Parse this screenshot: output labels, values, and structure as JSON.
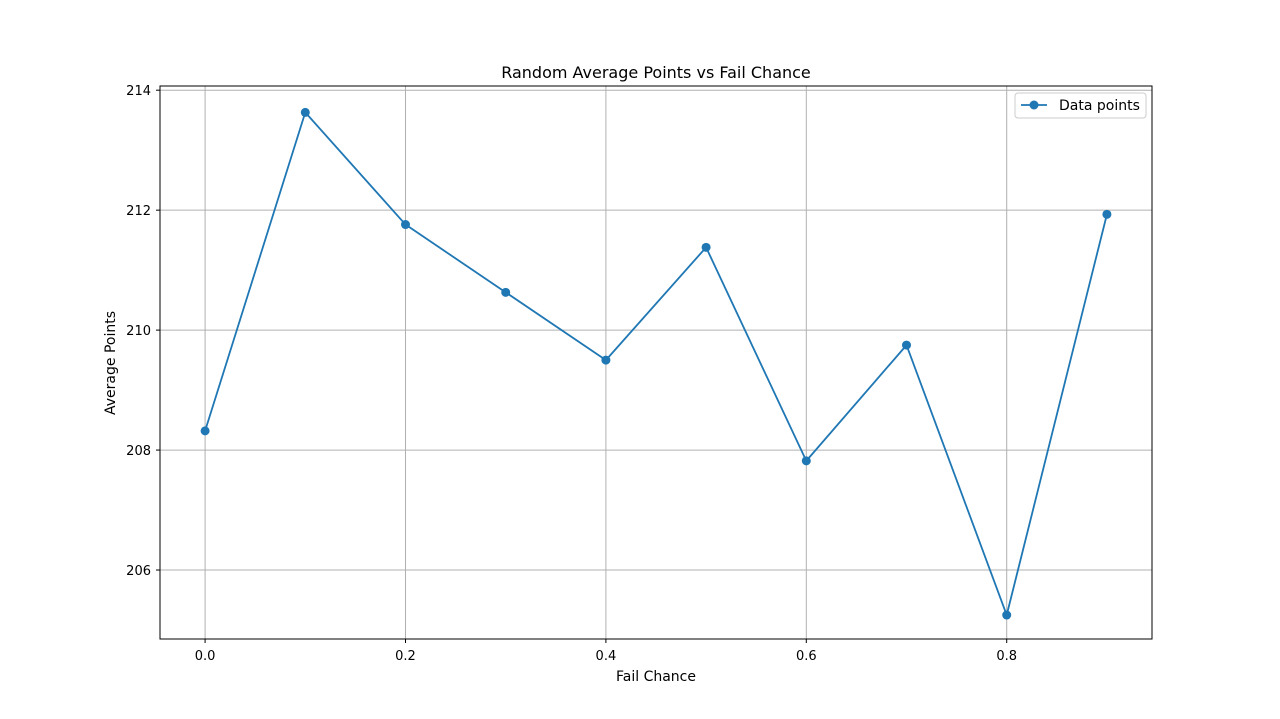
{
  "chart_data": {
    "type": "line",
    "title": "Random Average Points vs Fail Chance",
    "xlabel": "Fail Chance",
    "ylabel": "Average Points",
    "xlim": [
      -0.045,
      0.945
    ],
    "ylim": [
      204.85,
      214.07
    ],
    "xticks": [
      "0.0",
      "0.2",
      "0.4",
      "0.6",
      "0.8"
    ],
    "yticks": [
      "206",
      "208",
      "210",
      "212",
      "214"
    ],
    "grid": true,
    "legend_position": "top-right",
    "series": [
      {
        "name": "Data points",
        "color": "#1f77b4",
        "marker": "circle",
        "x": [
          0.0,
          0.1,
          0.2,
          0.3,
          0.4,
          0.5,
          0.6,
          0.7,
          0.8,
          0.9
        ],
        "y": [
          208.32,
          213.63,
          211.76,
          210.63,
          209.5,
          211.38,
          207.82,
          209.75,
          205.25,
          211.93
        ]
      }
    ]
  }
}
